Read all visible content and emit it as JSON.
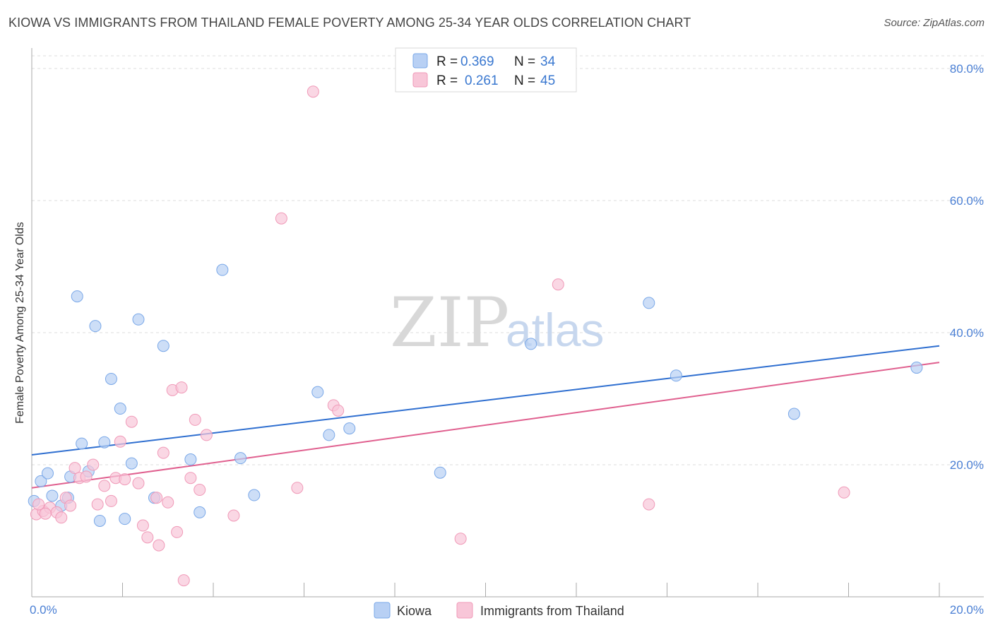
{
  "title": "KIOWA VS IMMIGRANTS FROM THAILAND FEMALE POVERTY AMONG 25-34 YEAR OLDS CORRELATION CHART",
  "source": "Source: ZipAtlas.com",
  "watermark": {
    "zip": "ZIP",
    "atlas": "atlas"
  },
  "chart_data": {
    "type": "scatter",
    "ylabel": "Female Poverty Among 25-34 Year Olds",
    "xlim": [
      0,
      20
    ],
    "ylim": [
      0,
      80
    ],
    "x_tick_labels": [
      "0.0%",
      "20.0%"
    ],
    "y_ticks": [
      {
        "value": 20,
        "label": "20.0%"
      },
      {
        "value": 40,
        "label": "40.0%"
      },
      {
        "value": 60,
        "label": "60.0%"
      },
      {
        "value": 80,
        "label": "80.0%"
      }
    ],
    "grid": "horizontal dashed",
    "legend_position": "top-center",
    "legend": [
      {
        "r_label": "R =",
        "r_value": "0.369",
        "n_label": "N =",
        "n_value": "34"
      },
      {
        "r_label": "R =",
        "r_value": "0.261",
        "n_label": "N =",
        "n_value": "45"
      }
    ],
    "series": [
      {
        "name": "Kiowa",
        "color": "#7aa8e8",
        "fill": "#b8d0f4",
        "line_color": "#2f6fd0",
        "trend": [
          [
            0,
            21.5
          ],
          [
            20,
            38.0
          ]
        ],
        "points": [
          [
            0.05,
            14.5
          ],
          [
            0.2,
            17.5
          ],
          [
            0.35,
            18.7
          ],
          [
            0.45,
            15.3
          ],
          [
            0.65,
            13.8
          ],
          [
            0.8,
            15.0
          ],
          [
            0.85,
            18.2
          ],
          [
            1.0,
            45.5
          ],
          [
            1.1,
            23.2
          ],
          [
            1.25,
            19.0
          ],
          [
            1.4,
            41.0
          ],
          [
            1.5,
            11.5
          ],
          [
            1.6,
            23.4
          ],
          [
            1.75,
            33.0
          ],
          [
            1.95,
            28.5
          ],
          [
            2.05,
            11.8
          ],
          [
            2.2,
            20.2
          ],
          [
            2.35,
            42.0
          ],
          [
            2.7,
            15.0
          ],
          [
            2.9,
            38.0
          ],
          [
            3.5,
            20.8
          ],
          [
            3.7,
            12.8
          ],
          [
            4.2,
            49.5
          ],
          [
            4.6,
            21.0
          ],
          [
            4.9,
            15.4
          ],
          [
            6.3,
            31.0
          ],
          [
            6.55,
            24.5
          ],
          [
            7.0,
            25.5
          ],
          [
            9.0,
            18.8
          ],
          [
            11.0,
            38.3
          ],
          [
            13.6,
            44.5
          ],
          [
            14.2,
            33.5
          ],
          [
            16.8,
            27.7
          ],
          [
            19.5,
            34.7
          ]
        ]
      },
      {
        "name": "Immigrants from Thailand",
        "color": "#f09ab8",
        "fill": "#f8c6d8",
        "line_color": "#e0608f",
        "trend": [
          [
            0,
            16.5
          ],
          [
            20,
            35.5
          ]
        ],
        "points": [
          [
            0.1,
            12.5
          ],
          [
            0.25,
            13.0
          ],
          [
            0.4,
            13.5
          ],
          [
            0.55,
            12.8
          ],
          [
            0.65,
            12.0
          ],
          [
            0.75,
            15.0
          ],
          [
            0.85,
            13.8
          ],
          [
            0.95,
            19.5
          ],
          [
            1.05,
            18.0
          ],
          [
            1.2,
            18.2
          ],
          [
            1.35,
            20.0
          ],
          [
            1.45,
            14.0
          ],
          [
            1.6,
            16.8
          ],
          [
            1.75,
            14.5
          ],
          [
            1.85,
            18.0
          ],
          [
            1.95,
            23.5
          ],
          [
            2.05,
            17.8
          ],
          [
            2.2,
            26.5
          ],
          [
            2.35,
            17.2
          ],
          [
            2.45,
            10.8
          ],
          [
            2.55,
            9.0
          ],
          [
            2.75,
            15.0
          ],
          [
            2.8,
            7.8
          ],
          [
            2.9,
            21.8
          ],
          [
            3.0,
            14.3
          ],
          [
            3.1,
            31.3
          ],
          [
            3.2,
            9.8
          ],
          [
            3.3,
            31.7
          ],
          [
            3.35,
            2.5
          ],
          [
            3.5,
            18.0
          ],
          [
            3.6,
            26.8
          ],
          [
            3.7,
            16.2
          ],
          [
            3.85,
            24.5
          ],
          [
            4.45,
            12.3
          ],
          [
            5.5,
            57.3
          ],
          [
            5.85,
            16.5
          ],
          [
            6.2,
            76.5
          ],
          [
            6.65,
            29.0
          ],
          [
            6.75,
            28.2
          ],
          [
            9.45,
            8.8
          ],
          [
            11.6,
            47.3
          ],
          [
            13.6,
            14.0
          ],
          [
            17.9,
            15.8
          ],
          [
            0.15,
            14.0
          ],
          [
            0.3,
            12.6
          ]
        ]
      }
    ]
  }
}
